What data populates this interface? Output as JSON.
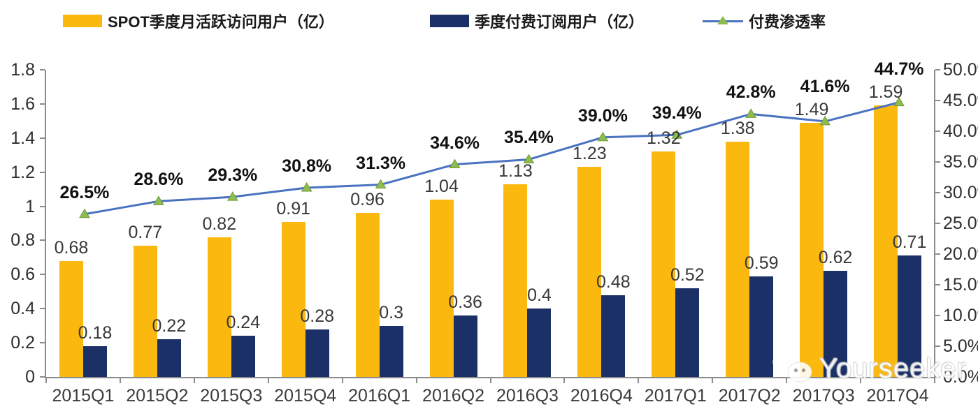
{
  "legend": {
    "items": [
      {
        "label": "SPOT季度月活跃访问用户（亿）",
        "type": "bar",
        "color": "#FBB90F"
      },
      {
        "label": "季度付费订阅用户（亿）",
        "type": "bar",
        "color": "#1A3067"
      },
      {
        "label": "付费渗透率",
        "type": "line",
        "color": "#4A72C0",
        "marker_color": "#8FBC4F"
      }
    ]
  },
  "chart_data": {
    "type": "bar",
    "subtype": "grouped bars with overlay line on secondary axis",
    "categories": [
      "2015Q1",
      "2015Q2",
      "2015Q3",
      "2015Q4",
      "2016Q1",
      "2016Q2",
      "2016Q3",
      "2016Q4",
      "2017Q1",
      "2017Q2",
      "2017Q3",
      "2017Q4"
    ],
    "series": [
      {
        "name": "SPOT季度月活跃访问用户（亿）",
        "type": "bar",
        "axis": "left",
        "color": "#FBB90F",
        "values": [
          0.68,
          0.77,
          0.82,
          0.91,
          0.96,
          1.04,
          1.13,
          1.23,
          1.32,
          1.38,
          1.49,
          1.59
        ],
        "labels": [
          "0.68",
          "0.77",
          "0.82",
          "0.91",
          "0.96",
          "1.04",
          "1.13",
          "1.23",
          "1.32",
          "1.38",
          "1.49",
          "1.59"
        ]
      },
      {
        "name": "季度付费订阅用户（亿）",
        "type": "bar",
        "axis": "left",
        "color": "#1A3067",
        "values": [
          0.18,
          0.22,
          0.24,
          0.28,
          0.3,
          0.36,
          0.4,
          0.48,
          0.52,
          0.59,
          0.62,
          0.71
        ],
        "labels": [
          "0.18",
          "0.22",
          "0.24",
          "0.28",
          "0.3",
          "0.36",
          "0.4",
          "0.48",
          "0.52",
          "0.59",
          "0.62",
          "0.71"
        ]
      },
      {
        "name": "付费渗透率",
        "type": "line",
        "axis": "right",
        "color": "#4A72C0",
        "marker": "triangle",
        "marker_color": "#8FBC4F",
        "values": [
          26.5,
          28.6,
          29.3,
          30.8,
          31.3,
          34.6,
          35.4,
          39.0,
          39.4,
          42.8,
          41.6,
          44.7
        ],
        "labels": [
          "26.5%",
          "28.6%",
          "29.3%",
          "30.8%",
          "31.3%",
          "34.6%",
          "35.4%",
          "39.0%",
          "39.4%",
          "42.8%",
          "41.6%",
          "44.7%"
        ]
      }
    ],
    "left_axis": {
      "min": 0,
      "max": 1.8,
      "ticks": [
        "0",
        "0.2",
        "0.4",
        "0.6",
        "0.8",
        "1",
        "1.2",
        "1.4",
        "1.6",
        "1.8"
      ]
    },
    "right_axis": {
      "min": 0,
      "max": 50,
      "ticks": [
        "0.0%",
        "5.0%",
        "10.0%",
        "15.0%",
        "20.0%",
        "25.0%",
        "30.0%",
        "35.0%",
        "40.0%",
        "45.0%",
        "50.0%"
      ]
    },
    "grid": false,
    "legend_position": "top",
    "title": ""
  },
  "watermark": {
    "text": "Yourseeker",
    "icon": "wechat-icon"
  },
  "colors": {
    "bar_mau": "#FBB90F",
    "bar_subs": "#1A3067",
    "line": "#4A72C0",
    "marker_fill": "#8FBC4F",
    "marker_stroke": "#6E9A39",
    "axis": "#8c8c8c"
  }
}
